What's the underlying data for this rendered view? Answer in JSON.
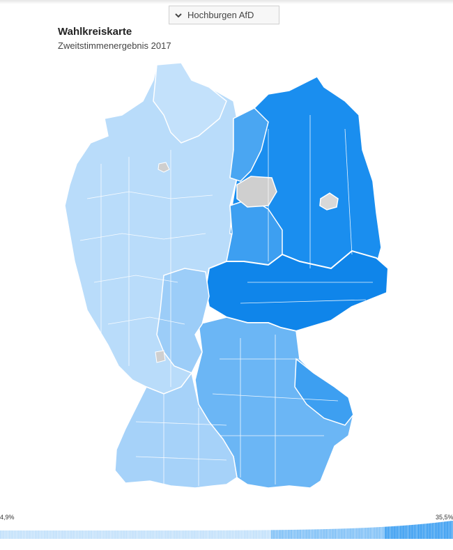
{
  "selector": {
    "label": "Hochburgen AfD",
    "icon": "chevron-down-icon"
  },
  "map": {
    "title": "Wahlkreiskarte",
    "subtitle": "Zweitstimmenergebnis 2017",
    "colors": {
      "low": "#b9dcfa",
      "mid": "#6bb6f5",
      "high": "#1a8eef",
      "very_high": "#0f85ea",
      "no_data": "#cfcfcf",
      "border": "#ffffff"
    }
  },
  "legend": {
    "min_label": "4,9%",
    "max_label": "35,5%",
    "min_value": 4.9,
    "max_value": 35.5
  }
}
